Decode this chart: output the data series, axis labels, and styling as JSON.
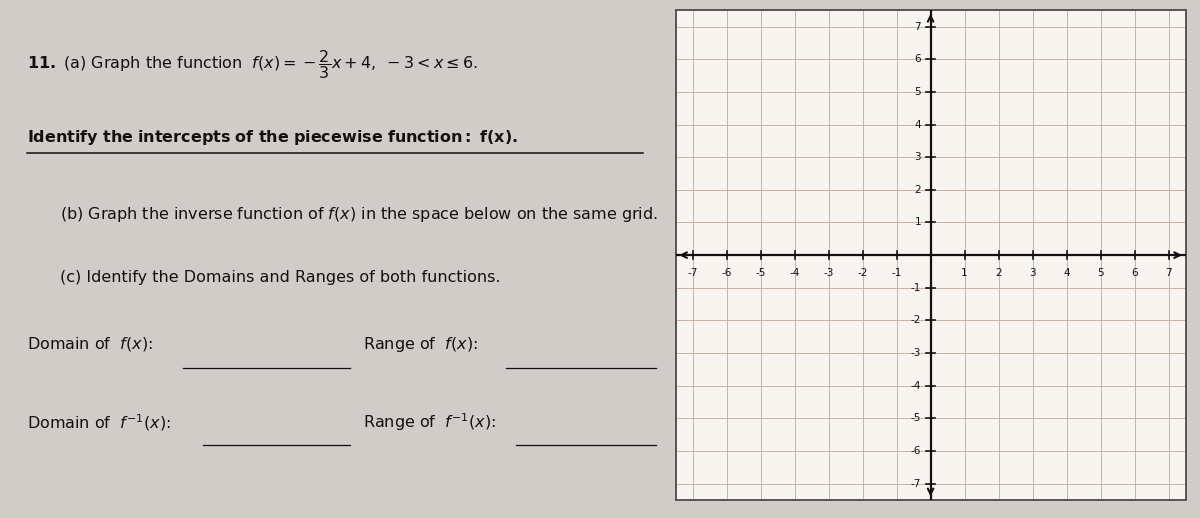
{
  "bg_color": "#d0ccc8",
  "left_panel_color": "#ececec",
  "grid_bg": "#f8f5f0",
  "grid_line_color": "#c0a898",
  "axis_color": "#111111",
  "text_color": "#111111",
  "x_min": -7,
  "x_max": 7,
  "y_min": -7,
  "y_max": 7
}
